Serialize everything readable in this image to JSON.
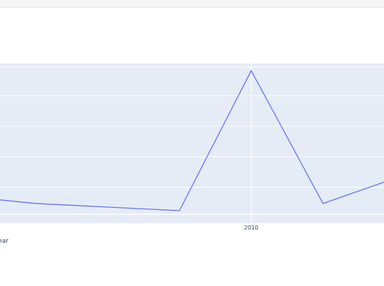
{
  "chart_data": {
    "type": "line",
    "x_axis_title": "Year",
    "x_ticks": [
      {
        "value": 2010,
        "label": "2010"
      }
    ],
    "x_range": [
      2006.5,
      2011.85
    ],
    "y_range": [
      -2.5,
      42
    ],
    "series": [
      {
        "color": "#636efa",
        "points": [
          {
            "x": 2006,
            "y": 5
          },
          {
            "x": 2007,
            "y": 3
          },
          {
            "x": 2009,
            "y": 1
          },
          {
            "x": 2010,
            "y": 40
          },
          {
            "x": 2011,
            "y": 3
          },
          {
            "x": 2012,
            "y": 10
          }
        ]
      }
    ],
    "grid": true,
    "plot_bg": "#e5ecf6",
    "grid_color": "#ffffff",
    "axis_text_color": "#2a3f5f"
  }
}
